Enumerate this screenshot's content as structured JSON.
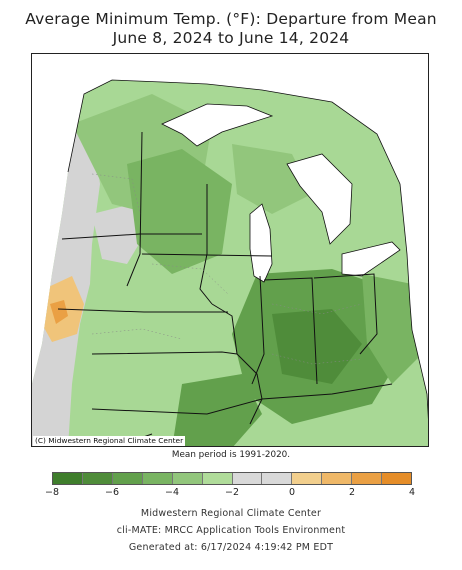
{
  "title": {
    "line1": "Average Minimum Temp. (°F): Departure from Mean",
    "line2": "June 8, 2024 to June 14, 2024"
  },
  "map": {
    "copyright": "(C) Midwestern Regional Climate Center",
    "mean_period": "Mean period is 1991-2020."
  },
  "legend": {
    "min": -8,
    "max": 4,
    "ticks": [
      "−8",
      "−6",
      "−4",
      "−2",
      "0",
      "2",
      "4"
    ],
    "colors": [
      "#3f7e2c",
      "#4f8c3a",
      "#62a04c",
      "#79b462",
      "#92c67c",
      "#b0dc9a",
      "#d9d9d9",
      "#d9d9d9",
      "#f2cf8d",
      "#efb868",
      "#eaa044",
      "#e58d28"
    ]
  },
  "footer": {
    "line1": "Midwestern Regional Climate Center",
    "line2": "cli-MATE: MRCC Application Tools Environment",
    "line3": "Generated at: 6/17/2024 4:19:42 PM EDT"
  }
}
